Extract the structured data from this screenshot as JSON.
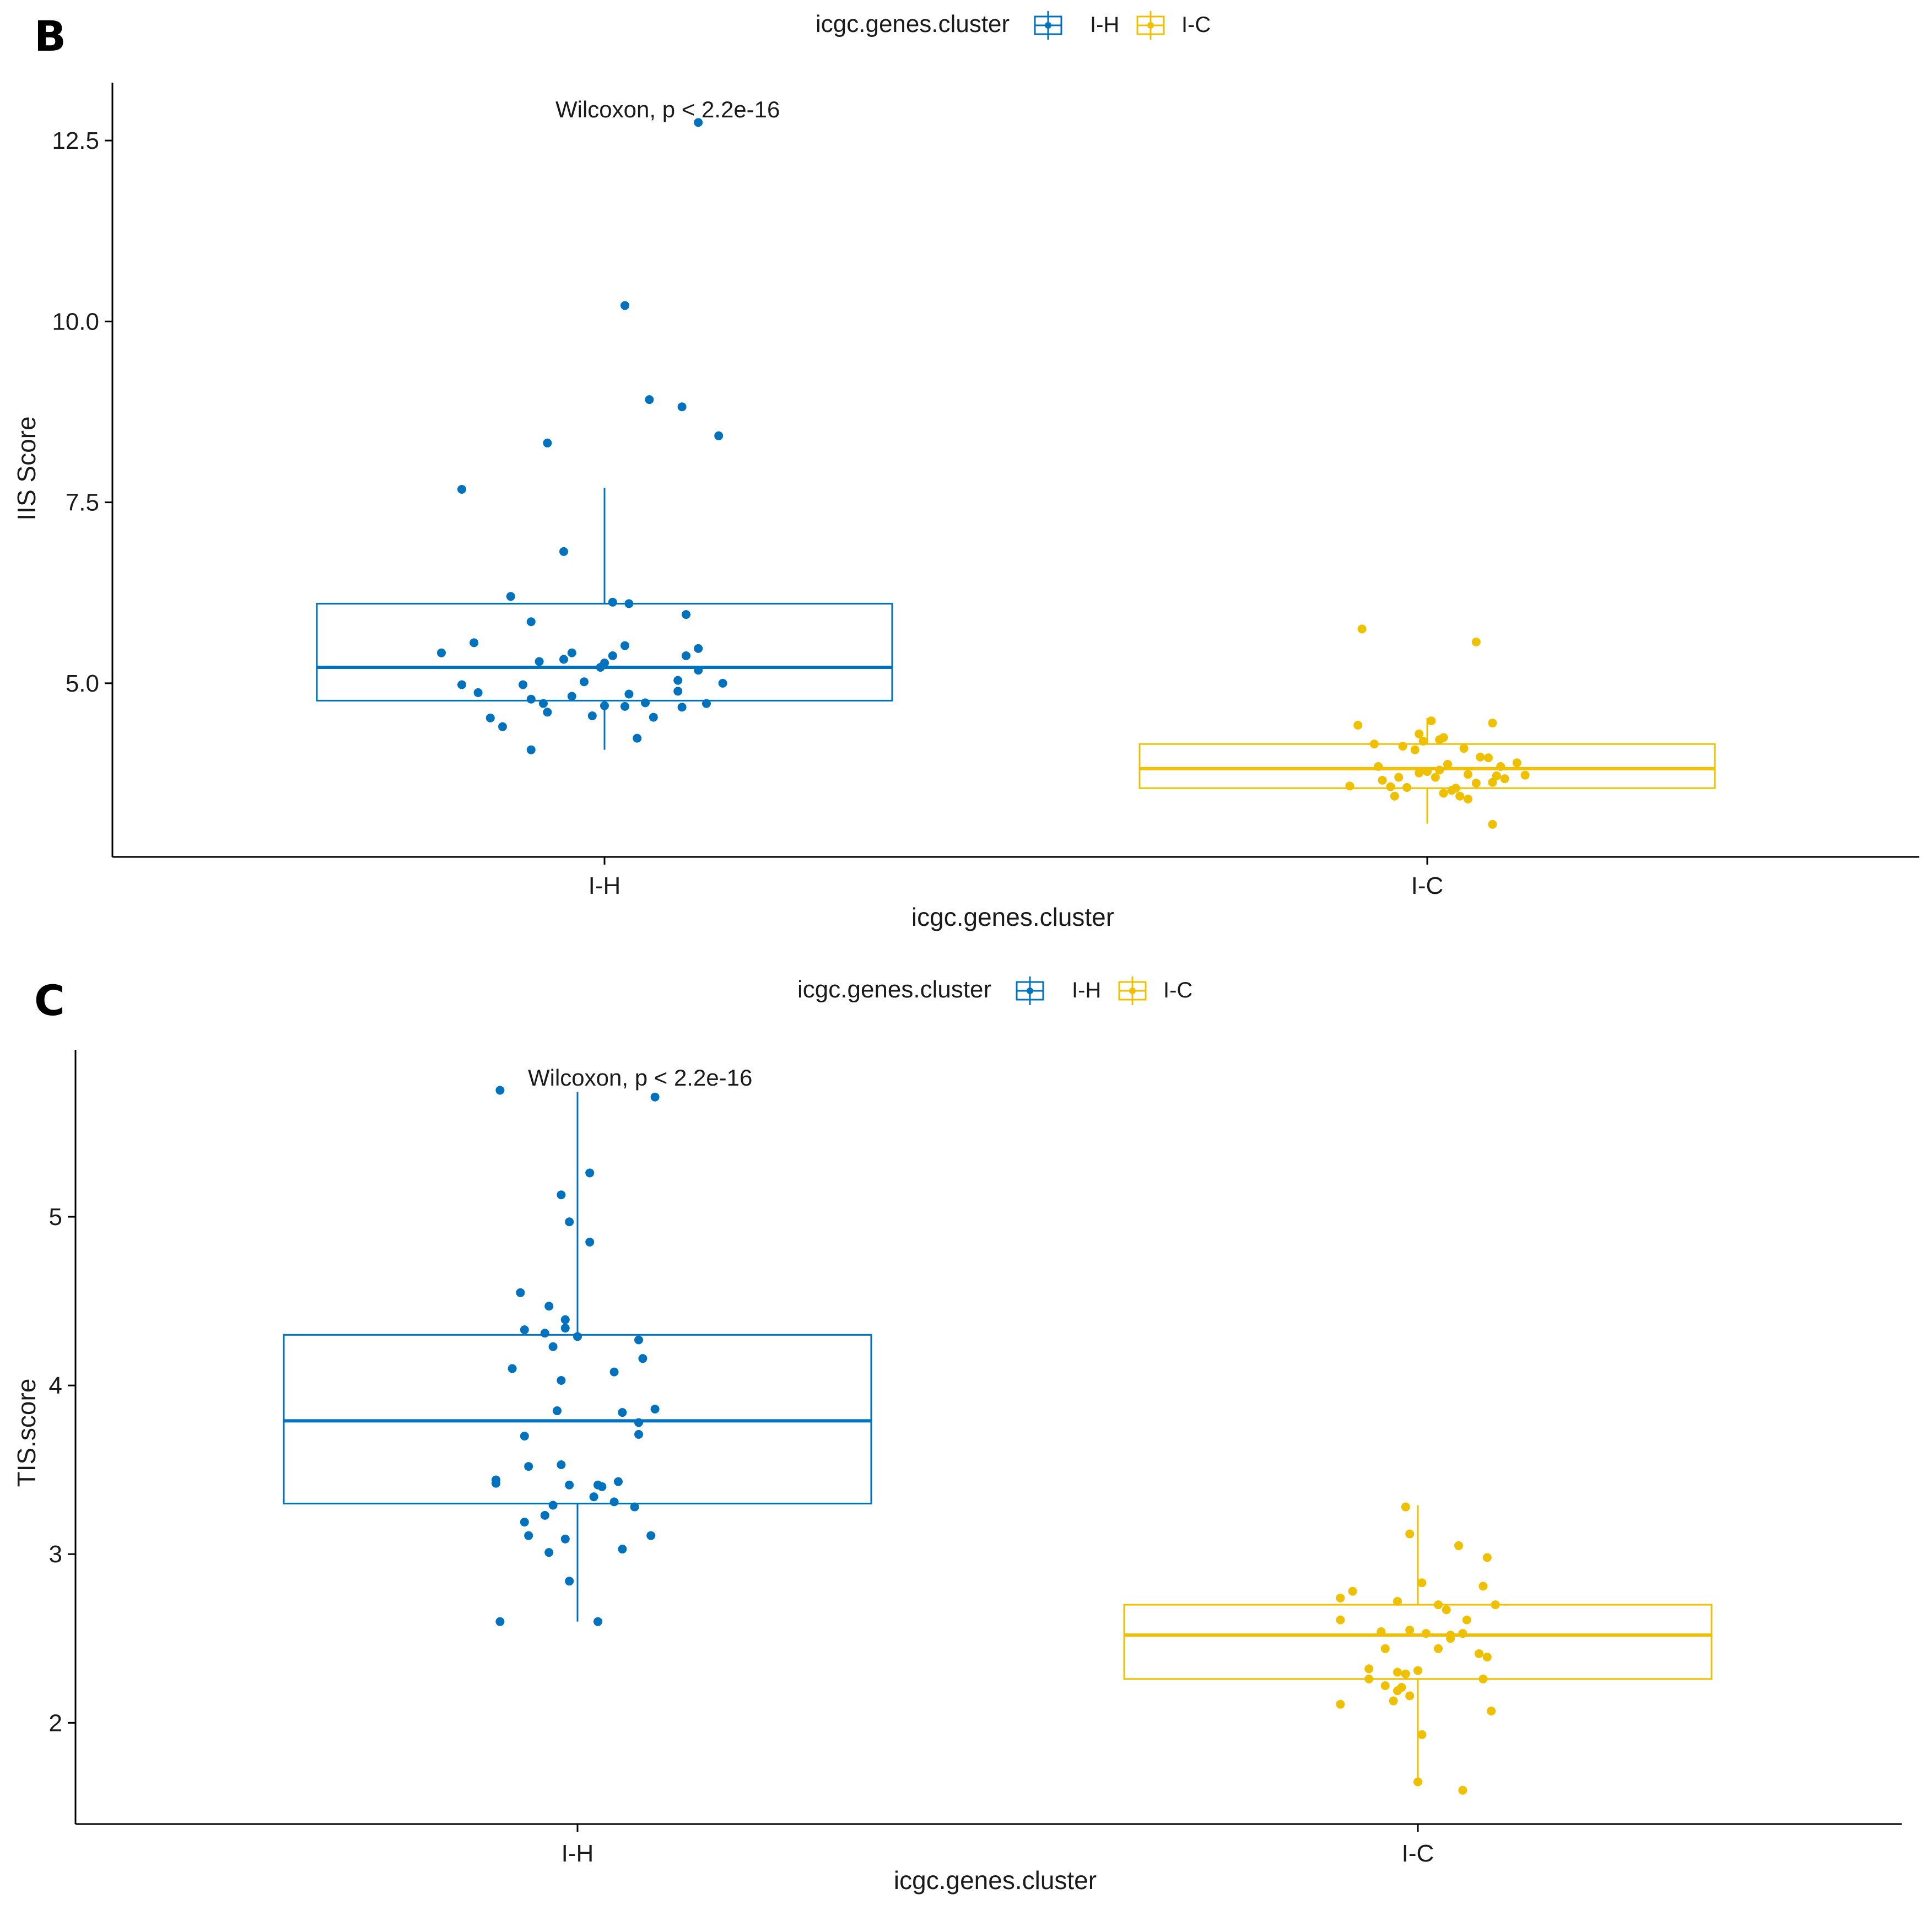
{
  "chart_data": [
    {
      "panel": "B",
      "type": "box",
      "title": "",
      "legend_title": "icgc.genes.cluster",
      "legend_position": "top",
      "xlabel": "icgc.genes.cluster",
      "ylabel": "IIS Score",
      "categories": [
        "I-H",
        "I-C"
      ],
      "ylim": [
        2.6,
        13.3
      ],
      "yticks": [
        5.0,
        7.5,
        10.0,
        12.5
      ],
      "ytick_labels": [
        "5.0",
        "7.5",
        "10.0",
        "12.5"
      ],
      "annotation": "Wilcoxon, p < 2.2e-16",
      "series": [
        {
          "name": "I-H",
          "color": "#0072bd",
          "box": {
            "min": 4.08,
            "q1": 4.76,
            "median": 5.22,
            "q3": 6.1,
            "max": 7.7
          },
          "points": [
            [
              -0.18,
              4.08
            ],
            [
              0.23,
              12.75
            ],
            [
              0.05,
              10.22
            ],
            [
              0.11,
              8.92
            ],
            [
              0.19,
              8.82
            ],
            [
              0.28,
              8.42
            ],
            [
              -0.14,
              8.32
            ],
            [
              -0.35,
              7.68
            ],
            [
              -0.1,
              6.82
            ],
            [
              0.02,
              6.12
            ],
            [
              -0.23,
              6.2
            ],
            [
              0.06,
              6.1
            ],
            [
              0.2,
              5.95
            ],
            [
              -0.18,
              5.85
            ],
            [
              -0.32,
              5.56
            ],
            [
              0.05,
              5.52
            ],
            [
              -0.4,
              5.42
            ],
            [
              0.23,
              5.48
            ],
            [
              0.2,
              5.38
            ],
            [
              -0.08,
              5.42
            ],
            [
              0.02,
              5.38
            ],
            [
              -0.1,
              5.33
            ],
            [
              -0.01,
              5.22
            ],
            [
              -0.16,
              5.3
            ],
            [
              0.0,
              5.28
            ],
            [
              0.23,
              5.18
            ],
            [
              0.18,
              5.04
            ],
            [
              -0.05,
              5.02
            ],
            [
              -0.2,
              4.98
            ],
            [
              0.29,
              5.0
            ],
            [
              -0.31,
              4.87
            ],
            [
              0.06,
              4.85
            ],
            [
              -0.08,
              4.82
            ],
            [
              0.18,
              4.89
            ],
            [
              -0.15,
              4.72
            ],
            [
              -0.18,
              4.78
            ],
            [
              0.1,
              4.73
            ],
            [
              0.19,
              4.67
            ],
            [
              0.05,
              4.68
            ],
            [
              0.0,
              4.69
            ],
            [
              -0.14,
              4.6
            ],
            [
              0.25,
              4.72
            ],
            [
              -0.28,
              4.52
            ],
            [
              -0.03,
              4.55
            ],
            [
              0.12,
              4.53
            ],
            [
              -0.25,
              4.4
            ],
            [
              -0.35,
              4.98
            ],
            [
              0.08,
              4.24
            ]
          ]
        },
        {
          "name": "I-C",
          "color": "#efc000",
          "box": {
            "min": 3.06,
            "q1": 3.55,
            "median": 3.82,
            "q3": 4.16,
            "max": 4.52
          },
          "points": [
            [
              -0.16,
              5.75
            ],
            [
              0.12,
              5.57
            ],
            [
              -0.17,
              4.42
            ],
            [
              0.16,
              4.45
            ],
            [
              -0.13,
              4.16
            ],
            [
              -0.06,
              4.13
            ],
            [
              -0.01,
              4.2
            ],
            [
              -0.03,
              4.08
            ],
            [
              0.04,
              4.25
            ],
            [
              0.09,
              4.1
            ],
            [
              0.15,
              3.97
            ],
            [
              -0.02,
              3.76
            ],
            [
              0.12,
              3.62
            ],
            [
              0.03,
              3.8
            ],
            [
              -0.12,
              3.85
            ],
            [
              0.05,
              3.88
            ],
            [
              0.0,
              3.78
            ],
            [
              0.18,
              3.85
            ],
            [
              0.22,
              3.9
            ],
            [
              0.13,
              3.98
            ],
            [
              -0.19,
              3.58
            ],
            [
              -0.09,
              3.57
            ],
            [
              -0.05,
              3.56
            ],
            [
              -0.08,
              3.44
            ],
            [
              0.04,
              3.48
            ],
            [
              0.06,
              3.52
            ],
            [
              0.08,
              3.44
            ],
            [
              0.1,
              3.4
            ],
            [
              -0.07,
              3.7
            ],
            [
              0.02,
              3.7
            ],
            [
              0.1,
              3.74
            ],
            [
              0.16,
              3.63
            ],
            [
              0.17,
              3.72
            ],
            [
              0.19,
              3.68
            ],
            [
              0.24,
              3.73
            ],
            [
              0.16,
              3.05
            ],
            [
              -0.02,
              4.3
            ],
            [
              0.07,
              3.55
            ],
            [
              -0.11,
              3.66
            ],
            [
              0.01,
              4.48
            ],
            [
              0.03,
              4.22
            ]
          ]
        }
      ]
    },
    {
      "panel": "C",
      "type": "box",
      "title": "",
      "legend_title": "icgc.genes.cluster",
      "legend_position": "top",
      "xlabel": "icgc.genes.cluster",
      "ylabel": "TIS.score",
      "categories": [
        "I-H",
        "I-C"
      ],
      "ylim": [
        1.4,
        5.99
      ],
      "yticks": [
        2,
        3,
        4,
        5
      ],
      "ytick_labels": [
        "2",
        "3",
        "4",
        "5"
      ],
      "annotation": "Wilcoxon, p < 2.2e-16",
      "series": [
        {
          "name": "I-H",
          "color": "#0072bd",
          "box": {
            "min": 2.6,
            "q1": 3.3,
            "median": 3.79,
            "q3": 4.3,
            "max": 5.74
          },
          "points": [
            [
              -0.19,
              5.75
            ],
            [
              0.19,
              5.71
            ],
            [
              0.03,
              5.26
            ],
            [
              -0.04,
              5.13
            ],
            [
              -0.02,
              4.97
            ],
            [
              0.03,
              4.85
            ],
            [
              -0.14,
              4.55
            ],
            [
              -0.07,
              4.47
            ],
            [
              -0.03,
              4.39
            ],
            [
              -0.13,
              4.33
            ],
            [
              -0.08,
              4.31
            ],
            [
              -0.03,
              4.34
            ],
            [
              0.0,
              4.29
            ],
            [
              0.15,
              4.27
            ],
            [
              -0.06,
              4.23
            ],
            [
              0.16,
              4.16
            ],
            [
              -0.16,
              4.1
            ],
            [
              0.09,
              4.08
            ],
            [
              -0.04,
              4.03
            ],
            [
              0.19,
              3.86
            ],
            [
              -0.05,
              3.85
            ],
            [
              0.11,
              3.84
            ],
            [
              0.15,
              3.78
            ],
            [
              0.15,
              3.71
            ],
            [
              -0.13,
              3.7
            ],
            [
              -0.04,
              3.53
            ],
            [
              -0.12,
              3.52
            ],
            [
              0.1,
              3.43
            ],
            [
              -0.2,
              3.44
            ],
            [
              -0.2,
              3.42
            ],
            [
              0.05,
              3.41
            ],
            [
              -0.02,
              3.41
            ],
            [
              0.04,
              3.34
            ],
            [
              0.09,
              3.31
            ],
            [
              -0.06,
              3.29
            ],
            [
              0.14,
              3.28
            ],
            [
              -0.13,
              3.19
            ],
            [
              -0.08,
              3.23
            ],
            [
              -0.12,
              3.11
            ],
            [
              0.18,
              3.11
            ],
            [
              -0.03,
              3.09
            ],
            [
              0.11,
              3.03
            ],
            [
              -0.07,
              3.01
            ],
            [
              -0.02,
              2.84
            ],
            [
              -0.19,
              2.6
            ],
            [
              0.05,
              2.6
            ],
            [
              0.06,
              3.4
            ]
          ]
        },
        {
          "name": "I-C",
          "color": "#efc000",
          "box": {
            "min": 1.65,
            "q1": 2.26,
            "median": 2.52,
            "q3": 2.7,
            "max": 3.29
          },
          "points": [
            [
              -0.03,
              3.28
            ],
            [
              -0.02,
              3.12
            ],
            [
              0.1,
              3.05
            ],
            [
              0.17,
              2.98
            ],
            [
              0.01,
              2.83
            ],
            [
              0.16,
              2.81
            ],
            [
              -0.16,
              2.78
            ],
            [
              -0.19,
              2.74
            ],
            [
              -0.05,
              2.72
            ],
            [
              0.05,
              2.7
            ],
            [
              0.07,
              2.67
            ],
            [
              0.19,
              2.7
            ],
            [
              -0.19,
              2.61
            ],
            [
              0.12,
              2.61
            ],
            [
              -0.09,
              2.54
            ],
            [
              -0.02,
              2.55
            ],
            [
              0.02,
              2.53
            ],
            [
              0.08,
              2.5
            ],
            [
              0.11,
              2.53
            ],
            [
              0.08,
              2.52
            ],
            [
              -0.08,
              2.44
            ],
            [
              0.05,
              2.44
            ],
            [
              0.15,
              2.41
            ],
            [
              0.17,
              2.39
            ],
            [
              -0.12,
              2.32
            ],
            [
              -0.05,
              2.3
            ],
            [
              -0.03,
              2.29
            ],
            [
              0.0,
              2.31
            ],
            [
              -0.12,
              2.26
            ],
            [
              0.16,
              2.26
            ],
            [
              -0.04,
              2.21
            ],
            [
              -0.05,
              2.19
            ],
            [
              -0.02,
              2.16
            ],
            [
              -0.06,
              2.13
            ],
            [
              -0.19,
              2.11
            ],
            [
              0.18,
              2.07
            ],
            [
              0.01,
              1.93
            ],
            [
              0.0,
              1.65
            ],
            [
              0.11,
              1.6
            ],
            [
              -0.08,
              2.22
            ]
          ]
        }
      ]
    }
  ]
}
